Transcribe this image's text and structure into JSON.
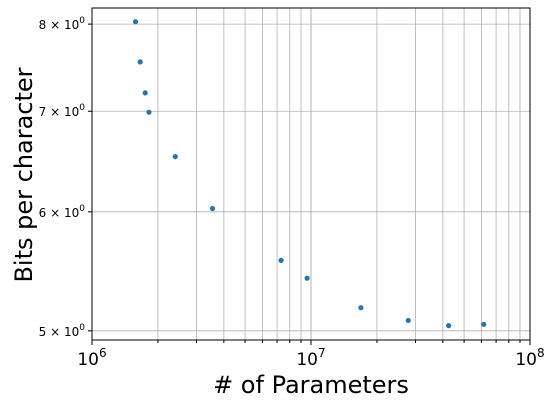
{
  "chart_data": {
    "type": "scatter",
    "xlabel": "# of Parameters",
    "ylabel": "Bits per character",
    "x_scale": "log",
    "y_scale": "log",
    "xlim": [
      1000000,
      100000000
    ],
    "ylim": [
      4.93,
      8.2
    ],
    "grid": true,
    "grid_which": "both",
    "marker_color": "#1f77b4",
    "x_ticks": [
      {
        "base": "10",
        "exp": "6"
      },
      {
        "base": "10",
        "exp": "7"
      },
      {
        "base": "10",
        "exp": "8"
      }
    ],
    "y_ticks": [
      {
        "mantissa": "5",
        "base": "10",
        "exp": "0"
      },
      {
        "mantissa": "6",
        "base": "10",
        "exp": "0"
      },
      {
        "mantissa": "7",
        "base": "10",
        "exp": "0"
      },
      {
        "mantissa": "8",
        "base": "10",
        "exp": "0"
      }
    ],
    "points": [
      {
        "x": 1580000,
        "y": 8.03
      },
      {
        "x": 1660000,
        "y": 7.55
      },
      {
        "x": 1750000,
        "y": 7.2
      },
      {
        "x": 1820000,
        "y": 6.99
      },
      {
        "x": 2400000,
        "y": 6.53
      },
      {
        "x": 3550000,
        "y": 6.03
      },
      {
        "x": 7300000,
        "y": 5.57
      },
      {
        "x": 9600000,
        "y": 5.42
      },
      {
        "x": 16900000,
        "y": 5.18
      },
      {
        "x": 27800000,
        "y": 5.08
      },
      {
        "x": 42500000,
        "y": 5.04
      },
      {
        "x": 61500000,
        "y": 5.05
      }
    ]
  }
}
